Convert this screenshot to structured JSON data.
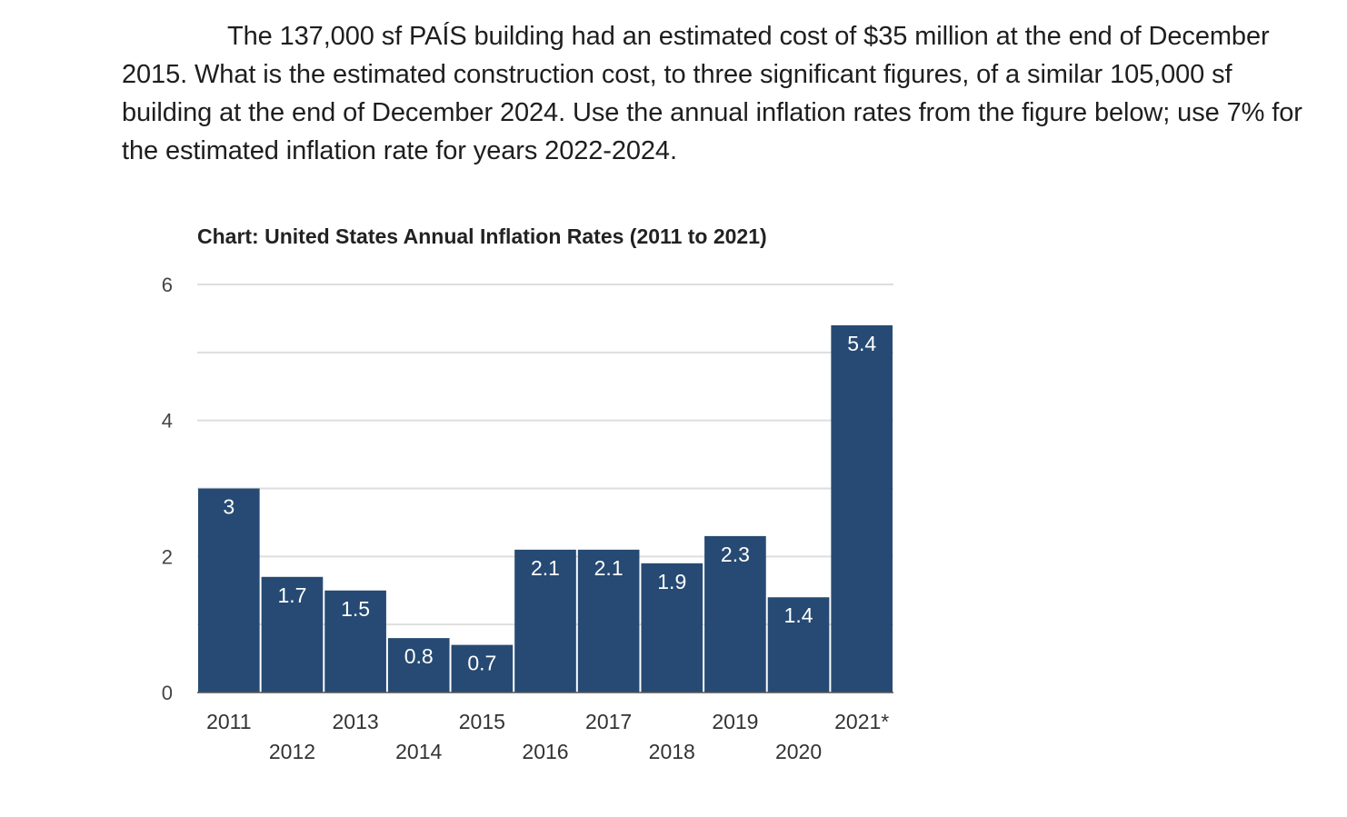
{
  "question": "The 137,000 sf PAÍS building had an estimated cost of $35 million at the end of December 2015. What is the estimated construction cost, to three significant figures, of a similar 105,000 sf building at the end of December 2024. Use the annual inflation rates from the figure below; use 7% for the estimated inflation rate for years 2022-2024.",
  "chart_data": {
    "type": "bar",
    "title": "Chart: United States Annual Inflation Rates (2011 to 2021)",
    "categories": [
      "2011",
      "2012",
      "2013",
      "2014",
      "2015",
      "2016",
      "2017",
      "2018",
      "2019",
      "2020",
      "2021*"
    ],
    "values": [
      3,
      1.7,
      1.5,
      0.8,
      0.7,
      2.1,
      2.1,
      1.9,
      2.3,
      1.4,
      5.4
    ],
    "data_labels": [
      "3",
      "1.7",
      "1.5",
      "0.8",
      "0.7",
      "2.1",
      "2.1",
      "1.9",
      "2.3",
      "1.4",
      "5.4"
    ],
    "xlabel": "",
    "ylabel": "",
    "ylim": [
      0,
      6
    ],
    "yticks": [
      "0",
      "2",
      "4",
      "6"
    ],
    "grid": true,
    "bar_color": "#264a73"
  }
}
